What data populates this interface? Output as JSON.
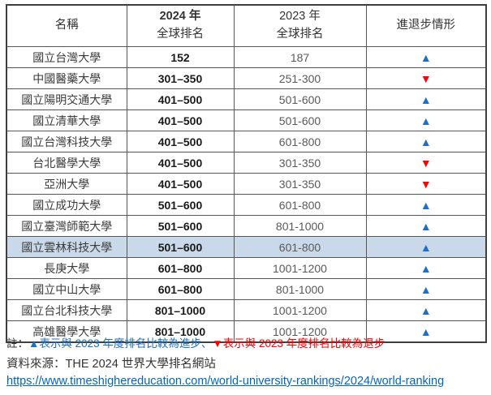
{
  "table": {
    "headers": {
      "name": "名稱",
      "y2024_line1": "2024 年",
      "y2024_line2": "全球排名",
      "y2023_line1": "2023 年",
      "y2023_line2": "全球排名",
      "trend": "進退步情形"
    },
    "glyph_up": "▲",
    "glyph_down": "▼",
    "rows": [
      {
        "name": "國立台灣大學",
        "rank2024": "152",
        "rank2023": "187",
        "trend": "up",
        "highlight": false
      },
      {
        "name": "中國醫藥大學",
        "rank2024": "301–350",
        "rank2023": "251-300",
        "trend": "down",
        "highlight": false
      },
      {
        "name": "國立陽明交通大學",
        "rank2024": "401–500",
        "rank2023": "501-600",
        "trend": "up",
        "highlight": false
      },
      {
        "name": "國立清華大學",
        "rank2024": "401–500",
        "rank2023": "501-600",
        "trend": "up",
        "highlight": false
      },
      {
        "name": "國立台灣科技大學",
        "rank2024": "401–500",
        "rank2023": "601-800",
        "trend": "up",
        "highlight": false
      },
      {
        "name": "台北醫學大學",
        "rank2024": "401–500",
        "rank2023": "301-350",
        "trend": "down",
        "highlight": false
      },
      {
        "name": "亞洲大學",
        "rank2024": "401–500",
        "rank2023": "301-350",
        "trend": "down",
        "highlight": false
      },
      {
        "name": "國立成功大學",
        "rank2024": "501–600",
        "rank2023": "601-800",
        "trend": "up",
        "highlight": false
      },
      {
        "name": "國立臺灣師範大學",
        "rank2024": "501–600",
        "rank2023": "801-1000",
        "trend": "up",
        "highlight": false
      },
      {
        "name": "國立雲林科技大學",
        "rank2024": "501–600",
        "rank2023": "601-800",
        "trend": "up",
        "highlight": true
      },
      {
        "name": "長庚大學",
        "rank2024": "601–800",
        "rank2023": "1001-1200",
        "trend": "up",
        "highlight": false
      },
      {
        "name": "國立中山大學",
        "rank2024": "601–800",
        "rank2023": "801-1000",
        "trend": "up",
        "highlight": false
      },
      {
        "name": "國立台北科技大學",
        "rank2024": "801–1000",
        "rank2023": "1001-1200",
        "trend": "up",
        "highlight": false
      },
      {
        "name": "高雄醫學大學",
        "rank2024": "801–1000",
        "rank2023": "1001-1200",
        "trend": "up",
        "highlight": false
      }
    ]
  },
  "legend": {
    "prefix": "註：",
    "up_text": "▲表示與 2023 年度排名比較為進步",
    "separator": "、",
    "down_text": "▼表示與 2023 年度排名比較為退步"
  },
  "source": {
    "label": "資料來源：THE 2024 世界大學排名網站",
    "url": "https://www.timeshighereducation.com/world-university-rankings/2024/world-ranking"
  },
  "colors": {
    "up": "#1f6fc4",
    "down": "#fe0000",
    "highlight": "#c9d9ea",
    "link": "#0563c1"
  }
}
